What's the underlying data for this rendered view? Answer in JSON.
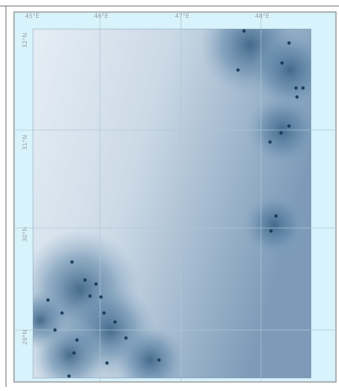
{
  "map": {
    "colors": {
      "ocean": "#d8f3fb",
      "surface_light": "#dfe9f1",
      "surface_dark": "#4d7598",
      "sample_point": "#163a5c",
      "graticule": "#aec7d6",
      "frame": "#8a8a8a"
    },
    "top_ticks": [
      "45°E",
      "46°E",
      "47°E",
      "48°E"
    ],
    "left_ticks": [
      "32°N",
      "31°N",
      "30°N",
      "29°N"
    ],
    "sample_point_count": 34
  }
}
